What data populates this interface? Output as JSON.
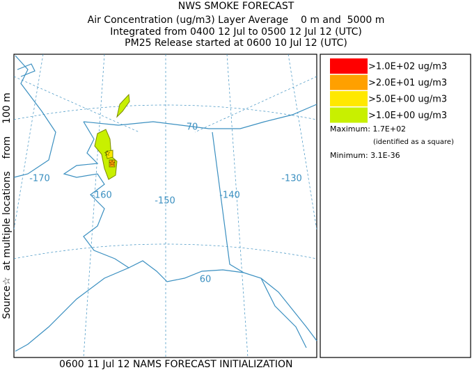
{
  "header": {
    "title": "NWS SMOKE FORECAST",
    "lines": [
      "Air Concentration (ug/m3) Layer Average    0 m and  5000 m",
      "Integrated from 0400 12 Jul to 0500 12 Jul 12 (UTC)",
      "PM25 Release started at 0600 10 Jul 12 (UTC)"
    ]
  },
  "side_label": "Source☆  at multiple locations    from    100 m",
  "map_labels": [
    "70",
    "-170",
    "-160",
    "-150",
    "-140",
    "-130",
    "60"
  ],
  "legend": {
    "items": [
      {
        "label": ">1.0E+02 ug/m3",
        "color": "#ff0000"
      },
      {
        "label": ">2.0E+01 ug/m3",
        "color": "#ffa000"
      },
      {
        "label": ">5.0E+00 ug/m3",
        "color": "#ffe800"
      },
      {
        "label": ">1.0E+00 ug/m3",
        "color": "#c8f000"
      }
    ],
    "maximum": "Maximum: 1.7E+02",
    "note": "(identified as a square)",
    "minimum": "Minimum: 3.1E-36"
  },
  "footer": "0600 11 Jul 12 NAMS FORECAST INITIALIZATION"
}
